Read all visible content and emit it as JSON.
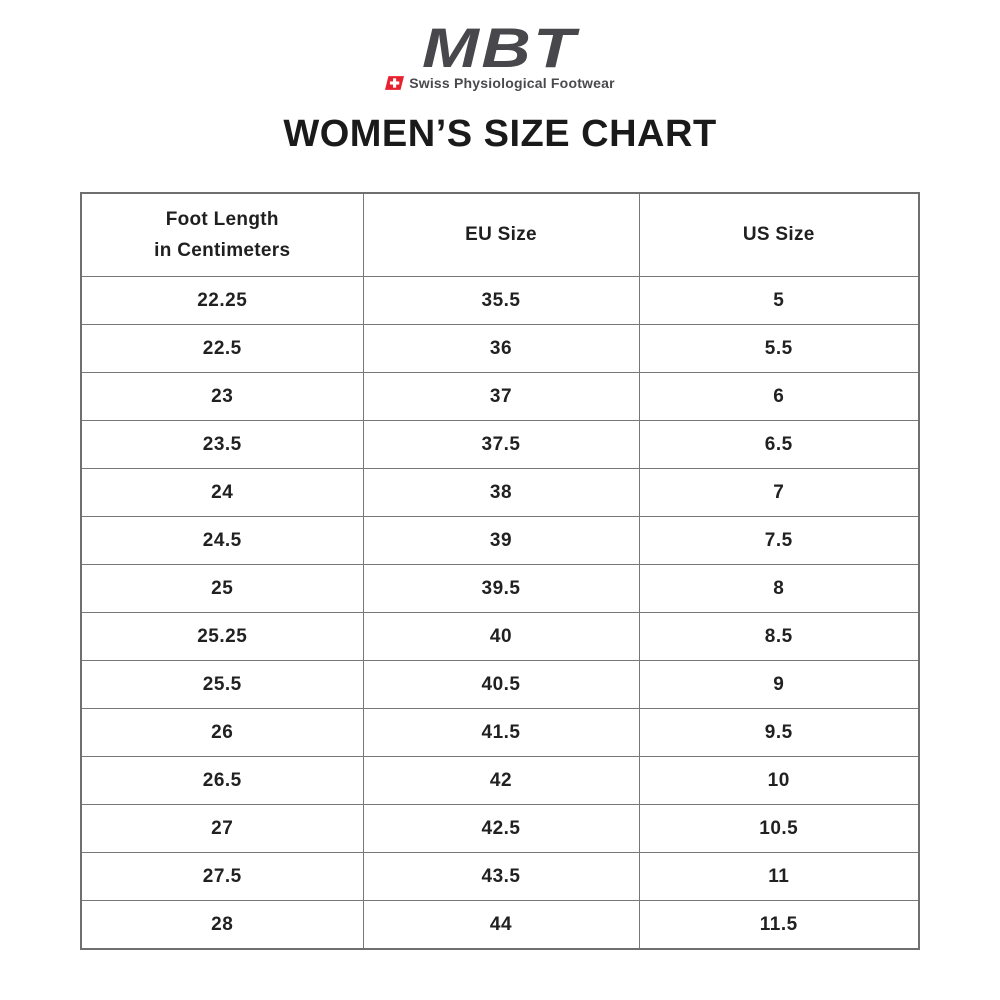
{
  "logo": {
    "brand": "MBT",
    "tagline": "Swiss Physiological Footwear",
    "brand_color": "#48484c",
    "flag_red": "#e8212e",
    "flag_cross_color": "#ffffff"
  },
  "page_title": "WOMEN’S SIZE CHART",
  "table": {
    "border_color": "#777777",
    "header": {
      "col1_line1": "Foot Length",
      "col1_line2": "in Centimeters",
      "col2": "EU Size",
      "col3": "US Size"
    }
  },
  "chart_data": {
    "type": "table",
    "title": "WOMEN’S SIZE CHART",
    "columns": [
      "Foot Length in Centimeters",
      "EU Size",
      "US Size"
    ],
    "rows": [
      [
        "22.25",
        "35.5",
        "5"
      ],
      [
        "22.5",
        "36",
        "5.5"
      ],
      [
        "23",
        "37",
        "6"
      ],
      [
        "23.5",
        "37.5",
        "6.5"
      ],
      [
        "24",
        "38",
        "7"
      ],
      [
        "24.5",
        "39",
        "7.5"
      ],
      [
        "25",
        "39.5",
        "8"
      ],
      [
        "25.25",
        "40",
        "8.5"
      ],
      [
        "25.5",
        "40.5",
        "9"
      ],
      [
        "26",
        "41.5",
        "9.5"
      ],
      [
        "26.5",
        "42",
        "10"
      ],
      [
        "27",
        "42.5",
        "10.5"
      ],
      [
        "27.5",
        "43.5",
        "11"
      ],
      [
        "28",
        "44",
        "11.5"
      ]
    ]
  }
}
